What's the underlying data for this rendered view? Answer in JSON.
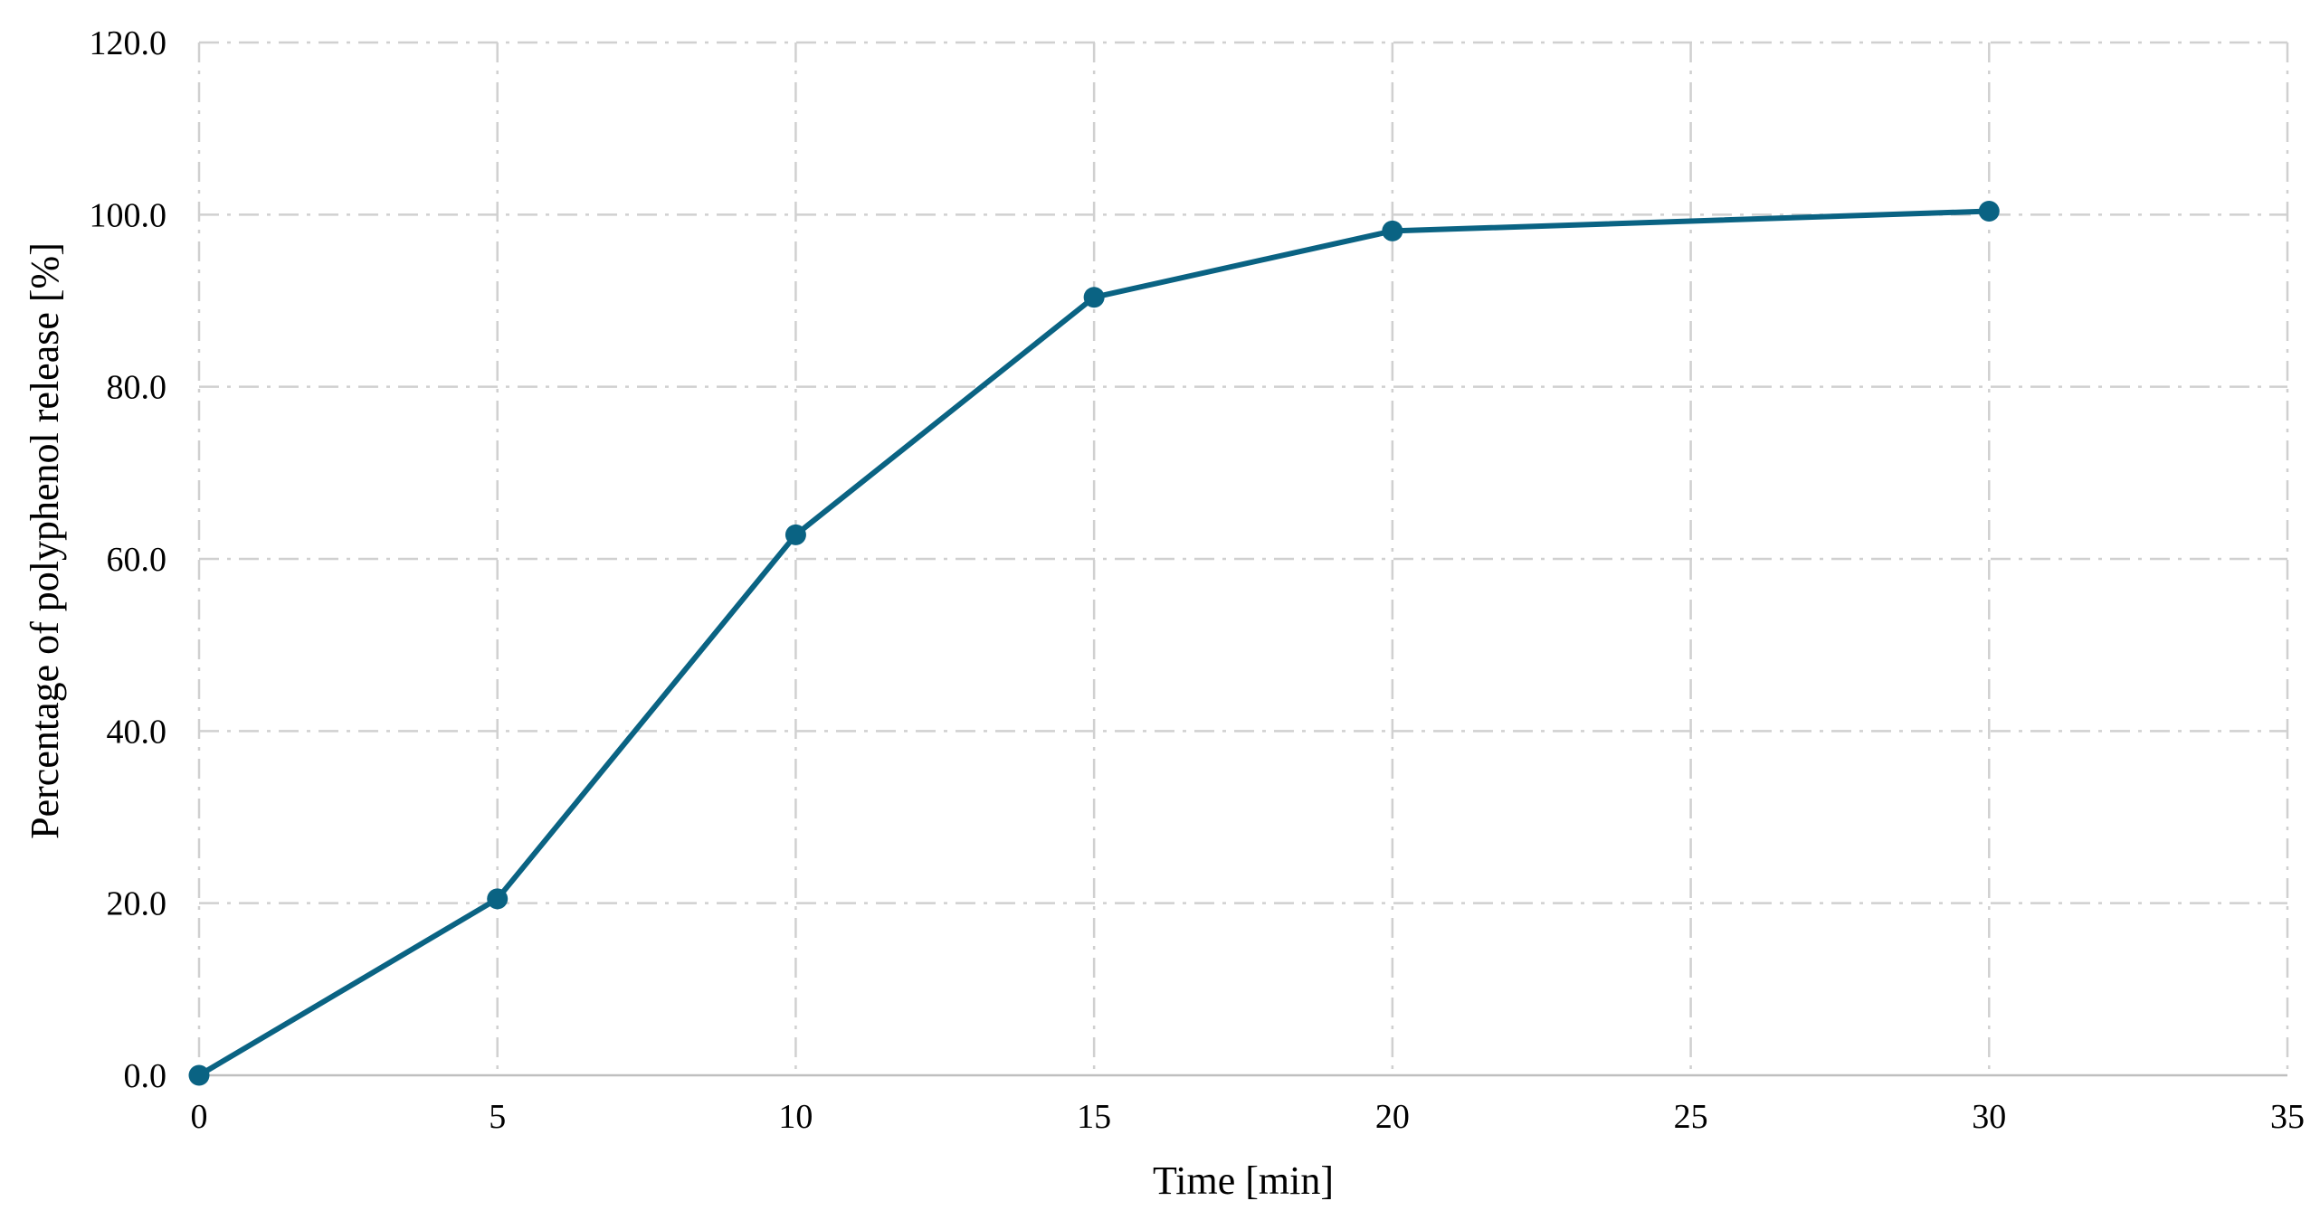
{
  "chart_data": {
    "type": "line",
    "xlabel": "Time [min]",
    "ylabel": "Percentage of polyphenol release [%]",
    "xlim": [
      0,
      35
    ],
    "ylim": [
      0,
      120
    ],
    "x_ticks": [
      0,
      5,
      10,
      15,
      20,
      25,
      30,
      35
    ],
    "y_ticks": [
      "0.0",
      "20.0",
      "40.0",
      "60.0",
      "80.0",
      "100.0",
      "120.0"
    ],
    "grid": true,
    "legend": "none",
    "series": [
      {
        "x": [
          0,
          5,
          10,
          15,
          20,
          30
        ],
        "y": [
          0.0,
          20.5,
          62.8,
          90.4,
          98.1,
          100.4
        ],
        "color": "#0a6383",
        "marker": "circle"
      }
    ]
  }
}
